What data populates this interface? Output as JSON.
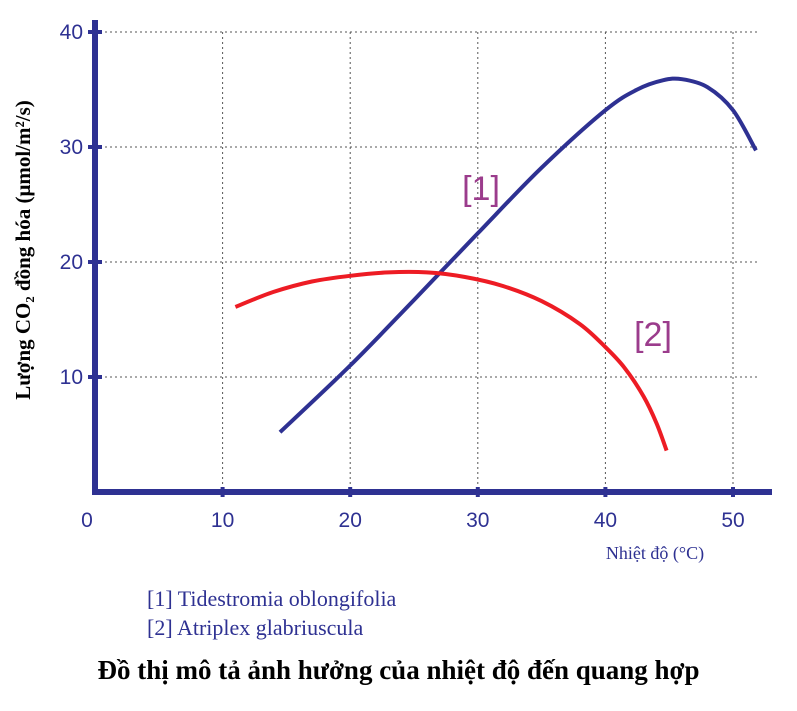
{
  "chart_data": {
    "type": "line",
    "xlabel": "Nhiệt độ (°C)",
    "ylabel": "Lượng CO₂ đồng hóa (μmol/m²/s)",
    "xlim": [
      0,
      52
    ],
    "ylim": [
      0,
      40
    ],
    "x_ticks": [
      "0",
      "10",
      "20",
      "30",
      "40",
      "50"
    ],
    "y_ticks": [
      "10",
      "20",
      "30",
      "40"
    ],
    "grid": true,
    "series": [
      {
        "name": "[1]",
        "color": "#2e3192",
        "x": [
          14.5,
          20,
          25,
          30,
          35,
          40,
          42.5,
          44.5,
          46,
          48,
          50,
          51.8
        ],
        "y": [
          5.2,
          11,
          16.7,
          22.5,
          28.2,
          33.2,
          35,
          35.8,
          35.9,
          35.2,
          33.2,
          29.7
        ]
      },
      {
        "name": "[2]",
        "color": "#ed1c24",
        "x": [
          11,
          14,
          17,
          20,
          23,
          26,
          29,
          32,
          35,
          38,
          40,
          41.5,
          43,
          44,
          44.8
        ],
        "y": [
          16.1,
          17.4,
          18.3,
          18.8,
          19.1,
          19.1,
          18.7,
          17.9,
          16.6,
          14.6,
          12.6,
          10.8,
          8.3,
          6.0,
          3.6
        ]
      }
    ]
  },
  "legend": {
    "item1": "[1] Tidestromia oblongifolia",
    "item2": "[2] Atriplex glabriuscula"
  },
  "caption": "Đồ thị mô tả ảnh hưởng của nhiệt độ đến quang hợp"
}
